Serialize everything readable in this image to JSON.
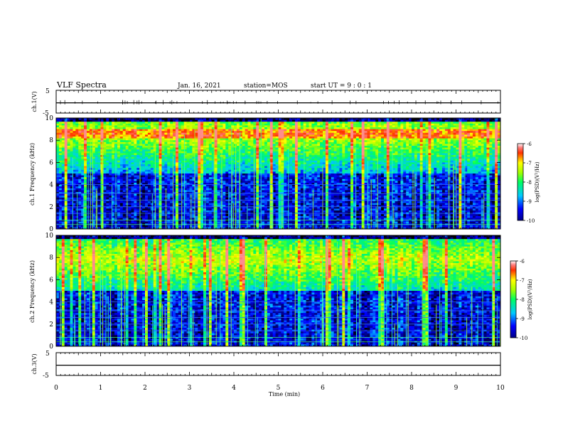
{
  "header": {
    "title": "VLF Spectra",
    "date": "Jan. 16, 2021",
    "station": "station=MOS",
    "start": "start UT = 9 : 0 : 1"
  },
  "chart_data": [
    {
      "type": "line",
      "id": "ch1-voltage",
      "ylabel": "ch.1(V)",
      "ylim": [
        -5,
        5
      ],
      "y_ticks": [
        "5",
        "-5"
      ],
      "xlim": [
        0,
        10
      ],
      "x": [
        0,
        10
      ],
      "values": [
        -0.5,
        -0.5
      ]
    },
    {
      "type": "heatmap",
      "id": "ch1-spectrogram",
      "ylabel": "ch.1 Frequency (kHz)",
      "ylim": [
        0,
        10
      ],
      "y_ticks": [
        "0",
        "2",
        "4",
        "6",
        "8",
        "10"
      ],
      "xlim": [
        0,
        10
      ],
      "colorbar": {
        "label": "log(PSD)(V²/Hz)",
        "range": [
          -10,
          -6
        ],
        "ticks": [
          "-6",
          "-7",
          "-8",
          "-9",
          "-10"
        ]
      }
    },
    {
      "type": "heatmap",
      "id": "ch2-spectrogram",
      "ylabel": "ch.2 Frequency (kHz)",
      "ylim": [
        0,
        10
      ],
      "y_ticks": [
        "0",
        "2",
        "4",
        "6",
        "8",
        "10"
      ],
      "xlim": [
        0,
        10
      ],
      "colorbar": {
        "label": "log(PSD)(V²/Hz)",
        "range": [
          -10,
          -6
        ],
        "ticks": [
          "-6",
          "-7",
          "-8",
          "-9",
          "-10"
        ]
      }
    },
    {
      "type": "line",
      "id": "ch3-voltage",
      "ylabel": "ch.3(V)",
      "ylim": [
        -5,
        5
      ],
      "y_ticks": [
        "5",
        "-5"
      ],
      "xlim": [
        0,
        10
      ],
      "x": [
        0,
        10
      ],
      "values": [
        -0.5,
        -0.5
      ]
    }
  ],
  "x_axis": {
    "label": "Time (min)",
    "ticks": [
      "0",
      "1",
      "2",
      "3",
      "4",
      "5",
      "6",
      "7",
      "8",
      "9",
      "10"
    ]
  }
}
